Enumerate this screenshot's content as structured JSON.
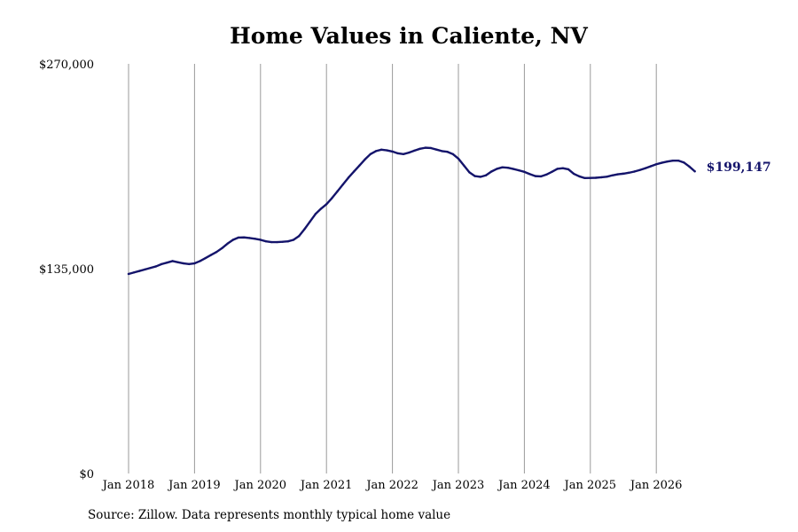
{
  "chart_data": {
    "type": "line",
    "title": "Home Values in Caliente, NV",
    "source": "Source: Zillow. Data represents monthly typical home value",
    "xlabel": "",
    "ylabel": "",
    "y_ticks": [
      {
        "value": 0,
        "label": "$0"
      },
      {
        "value": 135000,
        "label": "$135,000"
      },
      {
        "value": 270000,
        "label": "$270,000"
      }
    ],
    "ylim": [
      0,
      270000
    ],
    "x_ticks": [
      {
        "value": "2018-01",
        "label": "Jan 2018"
      },
      {
        "value": "2019-01",
        "label": "Jan 2019"
      },
      {
        "value": "2020-01",
        "label": "Jan 2020"
      },
      {
        "value": "2021-01",
        "label": "Jan 2021"
      },
      {
        "value": "2022-01",
        "label": "Jan 2022"
      },
      {
        "value": "2023-01",
        "label": "Jan 2023"
      },
      {
        "value": "2024-01",
        "label": "Jan 2024"
      },
      {
        "value": "2025-01",
        "label": "Jan 2025"
      },
      {
        "value": "2026-01",
        "label": "Jan 2026"
      }
    ],
    "xlim": [
      "2018-01",
      "2026-07"
    ],
    "vertical_grid": true,
    "horizontal_grid": false,
    "line_color": "#14146b",
    "end_label": "$199,147",
    "series": [
      {
        "points": [
          [
            "2018-01",
            131500
          ],
          [
            "2018-02",
            132500
          ],
          [
            "2018-03",
            133500
          ],
          [
            "2018-04",
            134500
          ],
          [
            "2018-05",
            135500
          ],
          [
            "2018-06",
            136500
          ],
          [
            "2018-07",
            138000
          ],
          [
            "2018-08",
            139000
          ],
          [
            "2018-09",
            140000
          ],
          [
            "2018-10",
            139200
          ],
          [
            "2018-11",
            138500
          ],
          [
            "2018-12",
            138000
          ],
          [
            "2019-01",
            138500
          ],
          [
            "2019-02",
            140000
          ],
          [
            "2019-03",
            142000
          ],
          [
            "2019-04",
            144000
          ],
          [
            "2019-05",
            146000
          ],
          [
            "2019-06",
            148500
          ],
          [
            "2019-07",
            151500
          ],
          [
            "2019-08",
            154000
          ],
          [
            "2019-09",
            155500
          ],
          [
            "2019-10",
            155600
          ],
          [
            "2019-11",
            155200
          ],
          [
            "2019-12",
            154700
          ],
          [
            "2020-01",
            154000
          ],
          [
            "2020-02",
            153000
          ],
          [
            "2020-03",
            152500
          ],
          [
            "2020-04",
            152500
          ],
          [
            "2020-05",
            152700
          ],
          [
            "2020-06",
            153000
          ],
          [
            "2020-07",
            154000
          ],
          [
            "2020-08",
            156500
          ],
          [
            "2020-09",
            161000
          ],
          [
            "2020-10",
            166000
          ],
          [
            "2020-11",
            171000
          ],
          [
            "2020-12",
            174500
          ],
          [
            "2021-01",
            177500
          ],
          [
            "2021-02",
            181500
          ],
          [
            "2021-03",
            186000
          ],
          [
            "2021-04",
            190500
          ],
          [
            "2021-05",
            195000
          ],
          [
            "2021-06",
            199000
          ],
          [
            "2021-07",
            203000
          ],
          [
            "2021-08",
            207000
          ],
          [
            "2021-09",
            210500
          ],
          [
            "2021-10",
            212500
          ],
          [
            "2021-11",
            213400
          ],
          [
            "2021-12",
            213000
          ],
          [
            "2022-01",
            212200
          ],
          [
            "2022-02",
            211000
          ],
          [
            "2022-03",
            210500
          ],
          [
            "2022-04",
            211500
          ],
          [
            "2022-05",
            212800
          ],
          [
            "2022-06",
            214000
          ],
          [
            "2022-07",
            214700
          ],
          [
            "2022-08",
            214500
          ],
          [
            "2022-09",
            213500
          ],
          [
            "2022-10",
            212500
          ],
          [
            "2022-11",
            212000
          ],
          [
            "2022-12",
            210500
          ],
          [
            "2023-01",
            207500
          ],
          [
            "2023-02",
            203000
          ],
          [
            "2023-03",
            198500
          ],
          [
            "2023-04",
            196000
          ],
          [
            "2023-05",
            195500
          ],
          [
            "2023-06",
            196500
          ],
          [
            "2023-07",
            199000
          ],
          [
            "2023-08",
            200800
          ],
          [
            "2023-09",
            201800
          ],
          [
            "2023-10",
            201500
          ],
          [
            "2023-11",
            200700
          ],
          [
            "2023-12",
            199800
          ],
          [
            "2024-01",
            198800
          ],
          [
            "2024-02",
            197300
          ],
          [
            "2024-03",
            196000
          ],
          [
            "2024-04",
            195800
          ],
          [
            "2024-05",
            197000
          ],
          [
            "2024-06",
            198800
          ],
          [
            "2024-07",
            200800
          ],
          [
            "2024-08",
            201200
          ],
          [
            "2024-09",
            200500
          ],
          [
            "2024-10",
            197500
          ],
          [
            "2024-11",
            195800
          ],
          [
            "2024-12",
            194700
          ],
          [
            "2025-01",
            194800
          ],
          [
            "2025-02",
            194900
          ],
          [
            "2025-03",
            195200
          ],
          [
            "2025-04",
            195600
          ],
          [
            "2025-05",
            196500
          ],
          [
            "2025-06",
            197200
          ],
          [
            "2025-07",
            197600
          ],
          [
            "2025-08",
            198200
          ],
          [
            "2025-09",
            199000
          ],
          [
            "2025-10",
            200000
          ],
          [
            "2025-11",
            201200
          ],
          [
            "2025-12",
            202500
          ],
          [
            "2026-01",
            203800
          ],
          [
            "2026-02",
            204800
          ],
          [
            "2026-03",
            205600
          ],
          [
            "2026-04",
            206200
          ],
          [
            "2026-05",
            206200
          ],
          [
            "2026-06",
            205000
          ],
          [
            "2026-07",
            202300
          ],
          [
            "2026-08",
            199147
          ]
        ]
      }
    ]
  }
}
